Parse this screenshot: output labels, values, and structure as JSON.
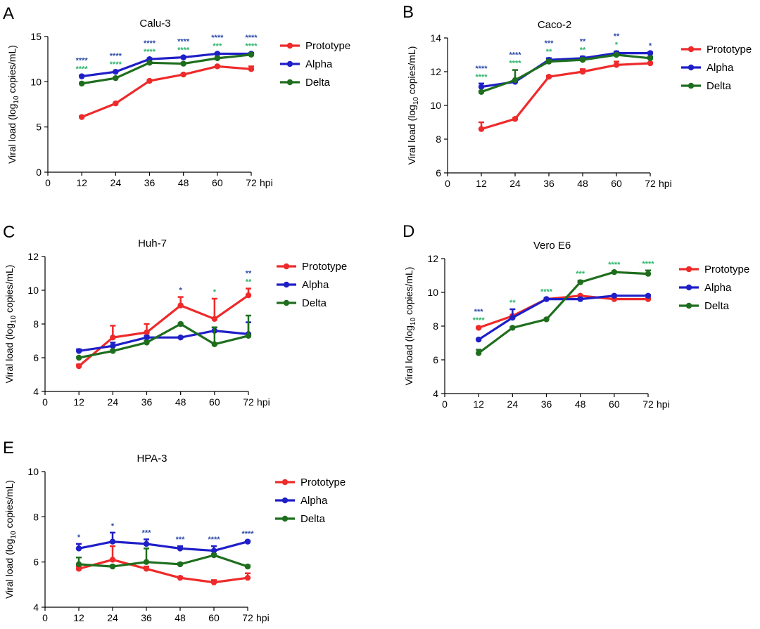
{
  "figure": {
    "x_unit": "hpi",
    "ylabel": {
      "prefix": "Viral load (log",
      "sub": "10",
      "suffix": " copies/mL)"
    },
    "legend": [
      "Prototype",
      "Alpha",
      "Delta"
    ],
    "colors": {
      "Prototype": "#ee2a2a",
      "Alpha": "#1f1fc8",
      "Delta": "#1e6e1e",
      "alpha_sig": "#2b4aa8",
      "delta_sig": "#2bb56a"
    }
  },
  "chart_data": [
    {
      "letter": "A",
      "title": "Calu-3",
      "type": "line",
      "xlim": [
        0,
        72
      ],
      "ylim": [
        0,
        15
      ],
      "xticks": [
        0,
        12,
        24,
        36,
        48,
        60,
        72
      ],
      "yticks": [
        0,
        5,
        10,
        15
      ],
      "x": [
        12,
        24,
        36,
        48,
        60,
        72
      ],
      "series": [
        {
          "name": "Prototype",
          "values": [
            6.1,
            7.6,
            10.1,
            10.8,
            11.7,
            11.4
          ],
          "err": [
            0.1,
            0.1,
            0.1,
            0.1,
            0.1,
            0.3
          ]
        },
        {
          "name": "Alpha",
          "values": [
            10.6,
            11.1,
            12.5,
            12.7,
            13.1,
            13.1
          ],
          "err": [
            0.1,
            0.1,
            0.1,
            0.1,
            0.1,
            0.1
          ]
        },
        {
          "name": "Delta",
          "values": [
            9.8,
            10.4,
            12.1,
            12.0,
            12.6,
            13.0
          ],
          "err": [
            0.1,
            0.1,
            0.1,
            0.1,
            0.1,
            0.1
          ]
        }
      ],
      "sig_alpha": [
        "****",
        "****",
        "****",
        "****",
        "****",
        "****"
      ],
      "sig_delta": [
        "****",
        "****",
        "****",
        "****",
        "***",
        "****"
      ]
    },
    {
      "letter": "B",
      "title": "Caco-2",
      "type": "line",
      "xlim": [
        0,
        72
      ],
      "ylim": [
        6,
        14
      ],
      "xticks": [
        0,
        12,
        24,
        36,
        48,
        60,
        72
      ],
      "yticks": [
        6,
        8,
        10,
        12,
        14
      ],
      "x": [
        12,
        24,
        36,
        48,
        60,
        72
      ],
      "series": [
        {
          "name": "Prototype",
          "values": [
            8.6,
            9.2,
            11.7,
            12.0,
            12.4,
            12.5
          ],
          "err": [
            0.4,
            0.05,
            0.05,
            0.15,
            0.2,
            0.05
          ]
        },
        {
          "name": "Alpha",
          "values": [
            11.1,
            11.4,
            12.7,
            12.8,
            13.1,
            13.1
          ],
          "err": [
            0.2,
            0.05,
            0.1,
            0.1,
            0.1,
            0.05
          ]
        },
        {
          "name": "Delta",
          "values": [
            10.8,
            11.5,
            12.6,
            12.7,
            13.0,
            12.8
          ],
          "err": [
            0.05,
            0.6,
            0.1,
            0.1,
            0.05,
            0.1
          ]
        }
      ],
      "sig_alpha": [
        "****",
        "****",
        "***",
        "**",
        "**",
        "*"
      ],
      "sig_delta": [
        "****",
        "****",
        "**",
        "**",
        "*",
        ""
      ]
    },
    {
      "letter": "C",
      "title": "Huh-7",
      "type": "line",
      "xlim": [
        0,
        72
      ],
      "ylim": [
        4,
        12
      ],
      "xticks": [
        0,
        12,
        24,
        36,
        48,
        60,
        72
      ],
      "yticks": [
        4,
        6,
        8,
        10,
        12
      ],
      "x": [
        12,
        24,
        36,
        48,
        60,
        72
      ],
      "series": [
        {
          "name": "Prototype",
          "values": [
            5.5,
            7.2,
            7.5,
            9.1,
            8.3,
            9.7
          ],
          "err": [
            0.1,
            0.7,
            0.5,
            0.5,
            1.2,
            0.4
          ]
        },
        {
          "name": "Alpha",
          "values": [
            6.4,
            6.7,
            7.2,
            7.2,
            7.6,
            7.4
          ],
          "err": [
            0.1,
            0.2,
            0.1,
            0.05,
            0.2,
            0.7
          ]
        },
        {
          "name": "Delta",
          "values": [
            6.0,
            6.4,
            6.9,
            8.0,
            6.8,
            7.3
          ],
          "err": [
            0.05,
            0.05,
            0.1,
            0.05,
            1.0,
            1.2
          ]
        }
      ],
      "sig_alpha": [
        "",
        "",
        "",
        "*",
        "",
        "**"
      ],
      "sig_delta": [
        "",
        "",
        "",
        "",
        "*",
        "**"
      ]
    },
    {
      "letter": "D",
      "title": "Vero E6",
      "type": "line",
      "xlim": [
        0,
        72
      ],
      "ylim": [
        4,
        12
      ],
      "xticks": [
        0,
        12,
        24,
        36,
        48,
        60,
        72
      ],
      "yticks": [
        4,
        6,
        8,
        10,
        12
      ],
      "x": [
        12,
        24,
        36,
        48,
        60,
        72
      ],
      "series": [
        {
          "name": "Prototype",
          "values": [
            7.9,
            8.6,
            9.6,
            9.8,
            9.6,
            9.6
          ],
          "err": [
            0.05,
            0.05,
            0.05,
            0.05,
            0.05,
            0.05
          ]
        },
        {
          "name": "Alpha",
          "values": [
            7.2,
            8.5,
            9.6,
            9.6,
            9.8,
            9.8
          ],
          "err": [
            0.05,
            0.5,
            0.05,
            0.05,
            0.05,
            0.05
          ]
        },
        {
          "name": "Delta",
          "values": [
            6.4,
            7.9,
            8.4,
            10.6,
            11.2,
            11.1
          ],
          "err": [
            0.2,
            0.05,
            0.05,
            0.1,
            0.05,
            0.2
          ]
        }
      ],
      "sig_alpha": [
        "***",
        "",
        "",
        "",
        "",
        ""
      ],
      "sig_delta": [
        "****",
        "**",
        "****",
        "***",
        "****",
        "****"
      ]
    },
    {
      "letter": "E",
      "title": "HPA-3",
      "type": "line",
      "xlim": [
        0,
        72
      ],
      "ylim": [
        4,
        10
      ],
      "xticks": [
        0,
        12,
        24,
        36,
        48,
        60,
        72
      ],
      "yticks": [
        4,
        6,
        8,
        10
      ],
      "x": [
        12,
        24,
        36,
        48,
        60,
        72
      ],
      "series": [
        {
          "name": "Prototype",
          "values": [
            5.7,
            6.1,
            5.7,
            5.3,
            5.1,
            5.3
          ],
          "err": [
            0.1,
            0.6,
            0.1,
            0.05,
            0.1,
            0.2
          ]
        },
        {
          "name": "Alpha",
          "values": [
            6.6,
            6.9,
            6.8,
            6.6,
            6.5,
            6.9
          ],
          "err": [
            0.2,
            0.4,
            0.2,
            0.1,
            0.2,
            0.05
          ]
        },
        {
          "name": "Delta",
          "values": [
            5.9,
            5.8,
            6.0,
            5.9,
            6.3,
            5.8
          ],
          "err": [
            0.3,
            0.05,
            0.6,
            0.05,
            0.05,
            0.05
          ]
        }
      ],
      "sig_alpha": [
        "*",
        "*",
        "***",
        "***",
        "****",
        "****"
      ],
      "sig_delta": [
        "",
        "",
        "",
        "",
        "",
        ""
      ]
    }
  ]
}
